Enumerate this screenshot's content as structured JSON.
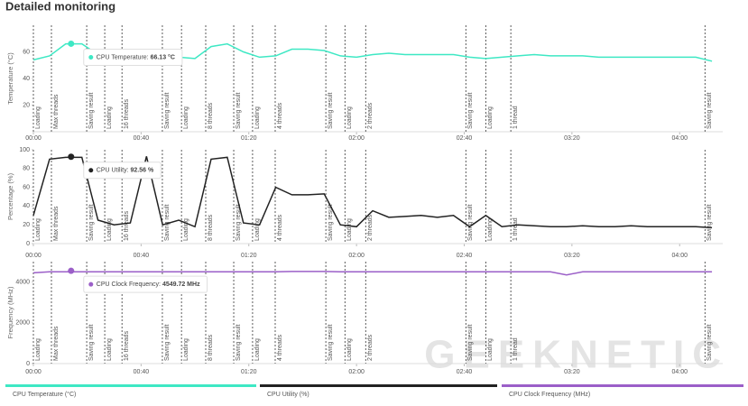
{
  "title": "Detailed monitoring",
  "watermark": "GEEKNETIC",
  "chart_data": [
    {
      "type": "line",
      "ylabel": "Temperature (°C)",
      "xlim": [
        0,
        256
      ],
      "ylim": [
        0,
        80
      ],
      "yticks": [
        20,
        40,
        60
      ],
      "xticks": [
        {
          "value": 0,
          "label": "00:00"
        },
        {
          "value": 40,
          "label": "00:40"
        },
        {
          "value": 80,
          "label": "01:20"
        },
        {
          "value": 120,
          "label": "02:00"
        },
        {
          "value": 160,
          "label": "02:40"
        },
        {
          "value": 200,
          "label": "03:20"
        },
        {
          "value": 240,
          "label": "04:00"
        }
      ],
      "phases": [
        {
          "x": 0,
          "label": "Loading"
        },
        {
          "x": 6.7,
          "label": "Max threads"
        },
        {
          "x": 19.8,
          "label": "Saving result"
        },
        {
          "x": 26.5,
          "label": "Loading"
        },
        {
          "x": 32.9,
          "label": "16 threads"
        },
        {
          "x": 47.9,
          "label": "Saving result"
        },
        {
          "x": 55,
          "label": "Loading"
        },
        {
          "x": 64,
          "label": "8 threads"
        },
        {
          "x": 74.4,
          "label": "Saving result"
        },
        {
          "x": 81.4,
          "label": "Loading"
        },
        {
          "x": 89.8,
          "label": "4 threads"
        },
        {
          "x": 108.6,
          "label": "Saving result"
        },
        {
          "x": 115.7,
          "label": "Loading"
        },
        {
          "x": 123.4,
          "label": "2 threads"
        },
        {
          "x": 160.6,
          "label": "Saving result"
        },
        {
          "x": 168,
          "label": "Loading"
        },
        {
          "x": 177.3,
          "label": "1 thread"
        },
        {
          "x": 249.4,
          "label": "Saving result"
        }
      ],
      "x": [
        0,
        6,
        12,
        18,
        24,
        30,
        36,
        42,
        48,
        54,
        60,
        66,
        72,
        78,
        84,
        90,
        96,
        102,
        108,
        114,
        120,
        126,
        132,
        138,
        144,
        150,
        156,
        162,
        168,
        174,
        180,
        186,
        192,
        198,
        204,
        210,
        216,
        222,
        228,
        234,
        240,
        246,
        252
      ],
      "series": [
        {
          "name": "CPU Temperature (°C)",
          "color": "#3ee8c4",
          "values": [
            54,
            57,
            66,
            66,
            58,
            56,
            57,
            57,
            57,
            56,
            55,
            64,
            66,
            60,
            56,
            57,
            62,
            62,
            61,
            57,
            56,
            58,
            59,
            58,
            58,
            58,
            58,
            56,
            55,
            56,
            57,
            58,
            57,
            57,
            57,
            56,
            56,
            56,
            56,
            56,
            56,
            56,
            53
          ]
        }
      ],
      "tooltip": {
        "x": 14,
        "value": 66.13,
        "label": "CPU Temperature:",
        "value_label": "66.13 °C"
      }
    },
    {
      "type": "line",
      "ylabel": "Percentage (%)",
      "xlim": [
        0,
        256
      ],
      "ylim": [
        0,
        100
      ],
      "yticks": [
        0,
        20,
        40,
        60,
        80,
        100
      ],
      "xticks": [
        {
          "value": 0,
          "label": "00:00"
        },
        {
          "value": 40,
          "label": "00:40"
        },
        {
          "value": 80,
          "label": "01:20"
        },
        {
          "value": 120,
          "label": "02:00"
        },
        {
          "value": 160,
          "label": "02:40"
        },
        {
          "value": 200,
          "label": "03:20"
        },
        {
          "value": 240,
          "label": "04:00"
        }
      ],
      "phases": [
        {
          "x": 0,
          "label": "Loading"
        },
        {
          "x": 6.7,
          "label": "Max threads"
        },
        {
          "x": 19.8,
          "label": "Saving result"
        },
        {
          "x": 26.5,
          "label": "Loading"
        },
        {
          "x": 32.9,
          "label": "16 threads"
        },
        {
          "x": 47.9,
          "label": "Saving result"
        },
        {
          "x": 55,
          "label": "Loading"
        },
        {
          "x": 64,
          "label": "8 threads"
        },
        {
          "x": 74.4,
          "label": "Saving result"
        },
        {
          "x": 81.4,
          "label": "Loading"
        },
        {
          "x": 89.8,
          "label": "4 threads"
        },
        {
          "x": 108.6,
          "label": "Saving result"
        },
        {
          "x": 115.7,
          "label": "Loading"
        },
        {
          "x": 123.4,
          "label": "2 threads"
        },
        {
          "x": 160.6,
          "label": "Saving result"
        },
        {
          "x": 168,
          "label": "Loading"
        },
        {
          "x": 177.3,
          "label": "1 thread"
        },
        {
          "x": 249.4,
          "label": "Saving result"
        }
      ],
      "x": [
        0,
        6,
        12,
        18,
        24,
        30,
        36,
        42,
        48,
        54,
        60,
        66,
        72,
        78,
        84,
        90,
        96,
        102,
        108,
        114,
        120,
        126,
        132,
        138,
        144,
        150,
        156,
        162,
        168,
        174,
        180,
        186,
        192,
        198,
        204,
        210,
        216,
        222,
        228,
        234,
        240,
        246,
        252
      ],
      "series": [
        {
          "name": "CPU Utility (%)",
          "color": "#222222",
          "values": [
            30,
            90,
            92,
            92,
            25,
            20,
            22,
            93,
            20,
            25,
            18,
            90,
            92,
            22,
            20,
            60,
            52,
            52,
            53,
            20,
            18,
            35,
            28,
            29,
            30,
            28,
            30,
            18,
            30,
            18,
            20,
            19,
            18,
            18,
            19,
            18,
            18,
            19,
            18,
            18,
            18,
            18,
            17
          ]
        }
      ],
      "tooltip": {
        "x": 14,
        "value": 92.56,
        "label": "CPU Utility:",
        "value_label": "92.56 %"
      }
    },
    {
      "type": "line",
      "ylabel": "Frequency (MHz)",
      "xlim": [
        0,
        256
      ],
      "ylim": [
        0,
        5000
      ],
      "yticks": [
        0,
        2000,
        4000
      ],
      "xticks": [
        {
          "value": 0,
          "label": "00:00"
        },
        {
          "value": 40,
          "label": "00:40"
        },
        {
          "value": 80,
          "label": "01:20"
        },
        {
          "value": 120,
          "label": "02:00"
        },
        {
          "value": 160,
          "label": "02:40"
        },
        {
          "value": 200,
          "label": "03:20"
        },
        {
          "value": 240,
          "label": "04:00"
        }
      ],
      "phases": [
        {
          "x": 0,
          "label": "Loading"
        },
        {
          "x": 6.7,
          "label": "Max threads"
        },
        {
          "x": 19.8,
          "label": "Saving result"
        },
        {
          "x": 26.5,
          "label": "Loading"
        },
        {
          "x": 32.9,
          "label": "16 threads"
        },
        {
          "x": 47.9,
          "label": "Saving result"
        },
        {
          "x": 55,
          "label": "Loading"
        },
        {
          "x": 64,
          "label": "8 threads"
        },
        {
          "x": 74.4,
          "label": "Saving result"
        },
        {
          "x": 81.4,
          "label": "Loading"
        },
        {
          "x": 89.8,
          "label": "4 threads"
        },
        {
          "x": 108.6,
          "label": "Saving result"
        },
        {
          "x": 115.7,
          "label": "Loading"
        },
        {
          "x": 123.4,
          "label": "2 threads"
        },
        {
          "x": 160.6,
          "label": "Saving result"
        },
        {
          "x": 168,
          "label": "Loading"
        },
        {
          "x": 177.3,
          "label": "1 thread"
        },
        {
          "x": 249.4,
          "label": "Saving result"
        }
      ],
      "x": [
        0,
        6,
        12,
        18,
        24,
        30,
        36,
        42,
        48,
        54,
        60,
        66,
        72,
        78,
        84,
        90,
        96,
        102,
        108,
        114,
        120,
        126,
        132,
        138,
        144,
        150,
        156,
        162,
        168,
        174,
        180,
        186,
        192,
        198,
        204,
        210,
        216,
        222,
        228,
        234,
        240,
        246,
        252
      ],
      "series": [
        {
          "name": "CPU Clock Frequency (MHz)",
          "color": "#9b5fc8",
          "values": [
            4450,
            4500,
            4500,
            4500,
            4500,
            4500,
            4500,
            4500,
            4500,
            4500,
            4500,
            4500,
            4500,
            4500,
            4500,
            4500,
            4520,
            4520,
            4520,
            4500,
            4500,
            4500,
            4500,
            4500,
            4500,
            4500,
            4500,
            4500,
            4500,
            4500,
            4500,
            4500,
            4500,
            4350,
            4500,
            4500,
            4500,
            4500,
            4500,
            4500,
            4500,
            4500,
            4500
          ]
        }
      ],
      "tooltip": {
        "x": 14,
        "value": 4549.72,
        "label": "CPU Clock Frequency:",
        "value_label": "4549.72 MHz"
      }
    }
  ]
}
